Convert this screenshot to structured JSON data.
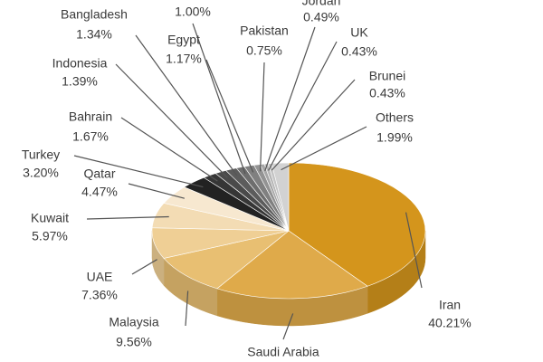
{
  "chart_data": {
    "type": "pie",
    "categories": [
      "Iran",
      "Saudi Arabia",
      "Malaysia",
      "UAE",
      "Kuwait",
      "Qatar",
      "Turkey",
      "Bahrain",
      "Indonesia",
      "Bangladesh",
      null,
      "Egypt",
      "Pakistan",
      "Jordan",
      "UK",
      "Brunei",
      "Others"
    ],
    "values": [
      40.21,
      18.57,
      9.56,
      7.36,
      5.97,
      4.47,
      3.2,
      1.67,
      1.39,
      1.34,
      1.0,
      1.17,
      0.75,
      0.49,
      0.43,
      0.43,
      1.99
    ],
    "value_labels": [
      "40.21%",
      null,
      "9.56%",
      "7.36%",
      "5.97%",
      "4.47%",
      "3.20%",
      "1.67%",
      "1.39%",
      "1.34%",
      "1.00%",
      "1.17%",
      "0.75%",
      "0.49%",
      "0.43%",
      "0.43%",
      "1.99%"
    ],
    "colors": [
      "#d4951c",
      "#dfaa4a",
      "#e8bf72",
      "#efcf95",
      "#f3dcb4",
      "#f7e8d0",
      "#222222",
      "#363636",
      "#4a4a4a",
      "#5c5c5c",
      "#6e6e6e",
      "#808080",
      "#939393",
      "#a6a6a6",
      "#b6b6b6",
      "#c4c4c4",
      "#d2d2d2"
    ]
  }
}
